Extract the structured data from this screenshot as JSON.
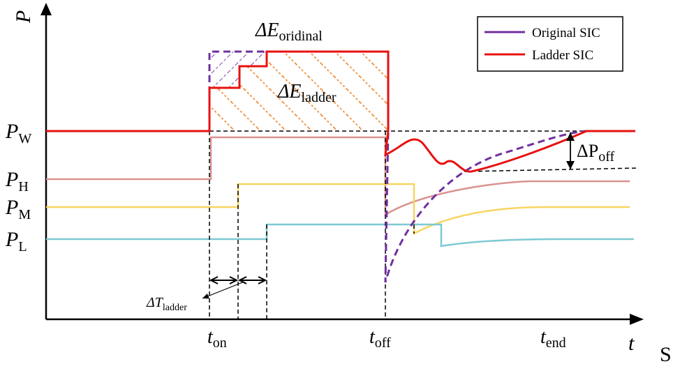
{
  "axes": {
    "y_label": "P",
    "x_label": "t",
    "corner_label": "S"
  },
  "power_levels": [
    {
      "id": "W",
      "main": "P",
      "sub": "W"
    },
    {
      "id": "H",
      "main": "P",
      "sub": "H"
    },
    {
      "id": "M",
      "main": "P",
      "sub": "M"
    },
    {
      "id": "L",
      "main": "P",
      "sub": "L"
    }
  ],
  "time_marks": [
    {
      "id": "on",
      "main": "t",
      "sub": "on"
    },
    {
      "id": "off",
      "main": "t",
      "sub": "off"
    },
    {
      "id": "end",
      "main": "t",
      "sub": "end"
    }
  ],
  "annotations": {
    "delta_e_original": {
      "main": "ΔE",
      "sub": "oridinal"
    },
    "delta_e_ladder": {
      "main": "ΔE",
      "sub": "ladder"
    },
    "delta_p_off": {
      "main": "ΔP",
      "sub": "off"
    },
    "delta_t_ladder": {
      "main": "ΔT",
      "sub": "ladder"
    }
  },
  "legend": {
    "items": [
      {
        "label": "Original SIC",
        "color": "#7030A0",
        "dashed": true
      },
      {
        "label": "Ladder SIC",
        "color": "#E81010",
        "dashed": false
      }
    ]
  },
  "colors": {
    "original_sic": "#7030A0",
    "ladder_sic": "#E81010",
    "p_h_curve": "#D9938F",
    "p_m_curve": "#F7D560",
    "p_l_curve": "#7EC9D3",
    "hatch_ladder": "#F28A30"
  }
}
